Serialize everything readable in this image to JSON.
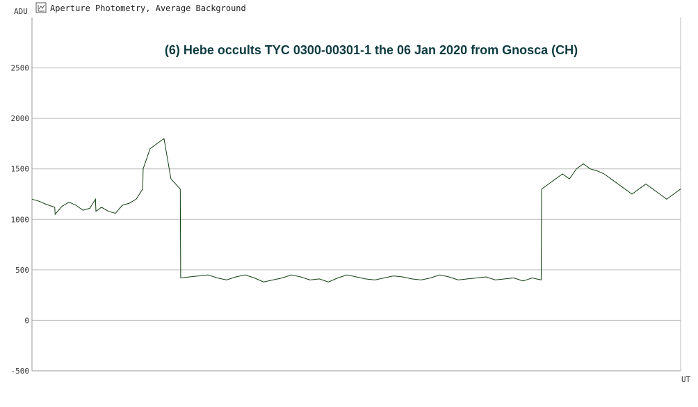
{
  "header": {
    "icon": "photometry-chart-icon",
    "label": "Aperture Photometry, Average Background"
  },
  "chart_data": {
    "type": "line",
    "title": "(6) Hebe occults TYC 0300-00301-1 the 06 Jan 2020 from Gnosca (CH)",
    "ylabel": "ADU",
    "xlabel": "UT",
    "ylim": [
      -500,
      3000
    ],
    "yticks": [
      -500,
      0,
      500,
      1000,
      1500,
      2000,
      2500
    ],
    "grid": true,
    "colors": {
      "line": "#0f3d0f",
      "title": "#0d3b40",
      "grid": "#bbbbbb"
    },
    "series": [
      {
        "x": [
          0,
          15,
          30,
          49,
          50,
          65,
          80,
          95,
          110,
          125,
          137,
          138,
          150,
          165,
          180,
          195,
          210,
          225,
          239,
          240,
          255,
          270,
          285,
          300,
          320,
          321,
          340,
          360,
          380,
          400,
          420,
          440,
          460,
          480,
          500,
          520,
          540,
          560,
          580,
          600,
          620,
          640,
          660,
          680,
          700,
          720,
          740,
          760,
          780,
          800,
          820,
          840,
          860,
          880,
          900,
          920,
          940,
          960,
          980,
          1000,
          1020,
          1040,
          1060,
          1080,
          1099,
          1100,
          1115,
          1130,
          1145,
          1160,
          1175,
          1190,
          1205,
          1220,
          1235,
          1250,
          1265,
          1280,
          1295,
          1310,
          1325,
          1340,
          1355,
          1370,
          1385,
          1400
        ],
        "values": [
          1200,
          1180,
          1150,
          1120,
          1050,
          1130,
          1170,
          1140,
          1090,
          1110,
          1200,
          1080,
          1120,
          1080,
          1060,
          1140,
          1160,
          1200,
          1300,
          1500,
          1700,
          1750,
          1800,
          1400,
          1300,
          420,
          430,
          440,
          450,
          420,
          400,
          430,
          450,
          420,
          380,
          400,
          420,
          450,
          430,
          400,
          410,
          380,
          420,
          450,
          430,
          410,
          400,
          420,
          440,
          430,
          410,
          400,
          420,
          450,
          430,
          400,
          410,
          420,
          430,
          400,
          410,
          420,
          390,
          420,
          400,
          1300,
          1350,
          1400,
          1450,
          1400,
          1500,
          1550,
          1500,
          1480,
          1450,
          1400,
          1350,
          1300,
          1250,
          1300,
          1350,
          1300,
          1250,
          1200,
          1250,
          1300
        ]
      }
    ]
  }
}
